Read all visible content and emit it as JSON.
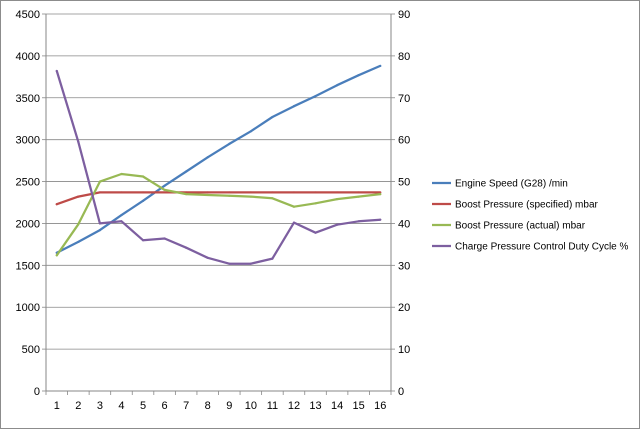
{
  "chart_data": {
    "type": "line",
    "title": "",
    "xlabel": "",
    "ylabel": "",
    "x": [
      1,
      2,
      3,
      4,
      5,
      6,
      7,
      8,
      9,
      10,
      11,
      12,
      13,
      14,
      15,
      16
    ],
    "x_tick_labels": [
      "1",
      "2",
      "3",
      "4",
      "5",
      "6",
      "7",
      "8",
      "9",
      "10",
      "11",
      "12",
      "13",
      "14",
      "15",
      "16"
    ],
    "y_left": {
      "min": 0,
      "max": 4500,
      "step": 500,
      "tick_labels": [
        "0",
        "500",
        "1000",
        "1500",
        "2000",
        "2500",
        "3000",
        "3500",
        "4000",
        "4500"
      ]
    },
    "y_right": {
      "min": 0,
      "max": 90,
      "step": 10,
      "tick_labels": [
        "0",
        "10",
        "20",
        "30",
        "40",
        "50",
        "60",
        "70",
        "80",
        "90"
      ]
    },
    "grid": "horizontal",
    "legend_position": "right",
    "series": [
      {
        "name": "Engine Speed (G28)  /min",
        "axis": "left",
        "color": "#4a7ebb",
        "values": [
          1650,
          1780,
          1920,
          2100,
          2270,
          2450,
          2620,
          2790,
          2950,
          3100,
          3270,
          3400,
          3520,
          3650,
          3770,
          3880
        ]
      },
      {
        "name": "Boost Pressure (specified)  mbar",
        "axis": "left",
        "color": "#be4b48",
        "values": [
          2230,
          2320,
          2370,
          2370,
          2370,
          2370,
          2370,
          2370,
          2370,
          2370,
          2370,
          2370,
          2370,
          2370,
          2370,
          2370
        ]
      },
      {
        "name": "Boost Pressure (actual)  mbar",
        "axis": "left",
        "color": "#98b954",
        "values": [
          1620,
          1990,
          2500,
          2590,
          2560,
          2400,
          2350,
          2340,
          2330,
          2320,
          2300,
          2200,
          2240,
          2290,
          2320,
          2350
        ]
      },
      {
        "name": "Charge Pressure Control Duty Cycle  %",
        "axis": "right",
        "color": "#7d5fa0",
        "values": [
          76.4,
          59.5,
          40.0,
          40.5,
          36.0,
          36.4,
          34.2,
          31.8,
          30.4,
          30.4,
          31.6,
          40.2,
          37.8,
          39.7,
          40.5,
          40.9
        ]
      }
    ]
  }
}
